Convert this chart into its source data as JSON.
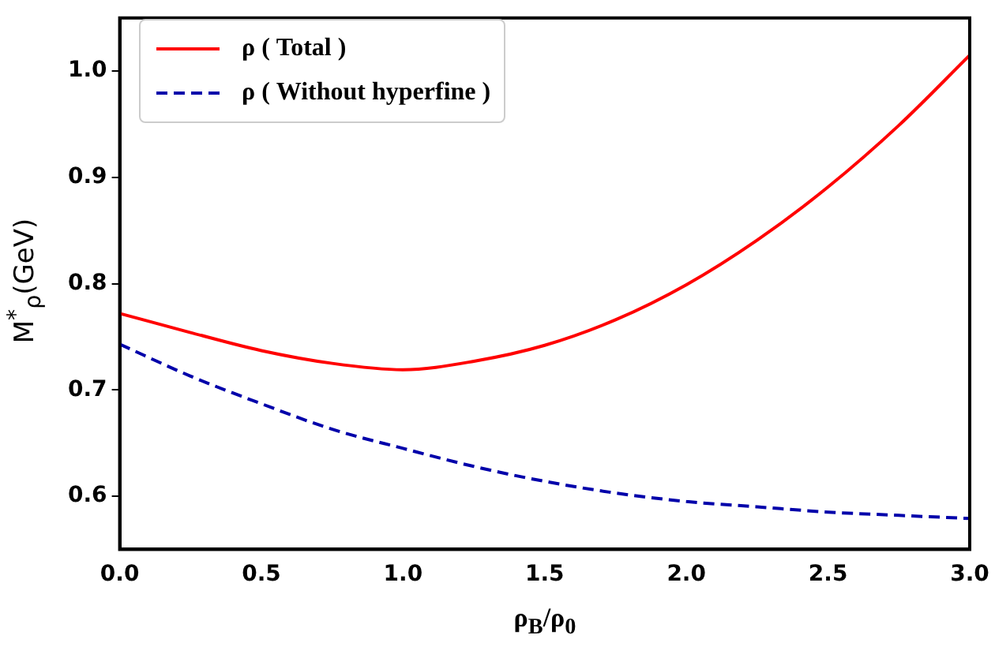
{
  "chart_data": {
    "type": "line",
    "xlabel": "ρ$_{B}$/ρ$_{0}$",
    "ylabel": "M$^{*}$$_{ρ}$(GeV)",
    "x": [
      0,
      0.25,
      0.5,
      0.75,
      1.0,
      1.25,
      1.5,
      1.75,
      2.0,
      2.25,
      2.5,
      2.75,
      3.0
    ],
    "series": [
      {
        "name": "ρ ( Total )",
        "color": "#ff0000",
        "line_style": "solid",
        "values": [
          0.772,
          0.754,
          0.737,
          0.725,
          0.719,
          0.727,
          0.742,
          0.766,
          0.799,
          0.841,
          0.891,
          0.949,
          1.015
        ]
      },
      {
        "name": "ρ ( Without hyperfine )",
        "color": "#0000aa",
        "line_style": "dashed",
        "values": [
          0.743,
          0.713,
          0.687,
          0.663,
          0.645,
          0.628,
          0.614,
          0.603,
          0.595,
          0.59,
          0.585,
          0.582,
          0.579
        ]
      }
    ],
    "xlim": [
      0,
      3
    ],
    "xticks": [
      {
        "value": 0,
        "label": "0.0"
      },
      0.5,
      {
        "value": 1,
        "label": "1.0"
      },
      1.5,
      {
        "value": 2,
        "label": "2.0"
      },
      2.5,
      {
        "value": 3,
        "label": "3.0"
      }
    ],
    "ylim": [
      0.55,
      1.05
    ],
    "yticks": [
      0.6,
      0.7,
      0.8,
      0.9,
      {
        "value": 1,
        "label": "1.0"
      }
    ],
    "grid": false,
    "legend": "top left",
    "marker": "none"
  }
}
